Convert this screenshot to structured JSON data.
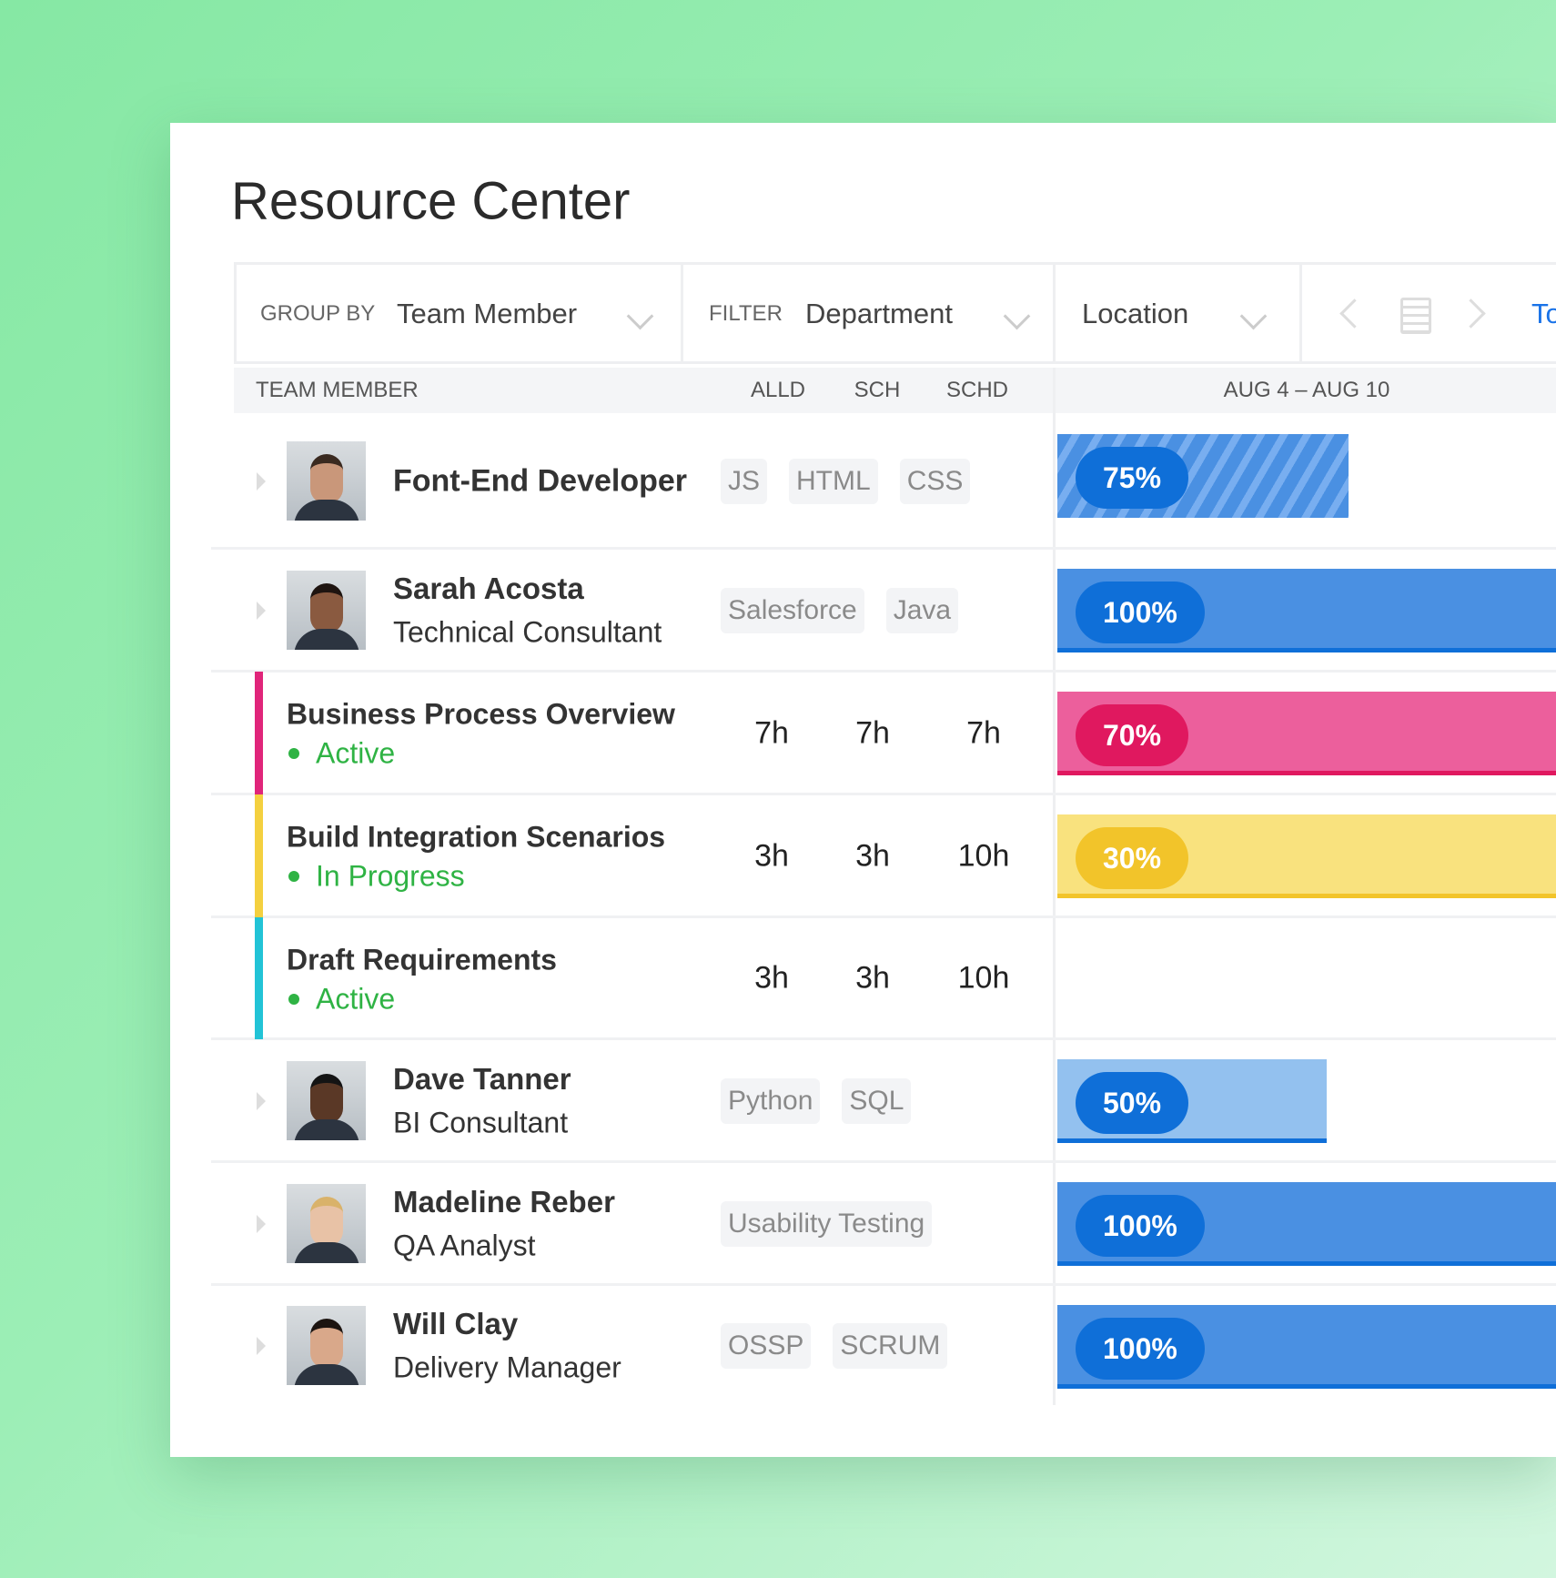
{
  "header": {
    "title": "Resource Center"
  },
  "toolbar": {
    "group_by_label": "GROUP BY",
    "group_by_value": "Team Member",
    "filter_label": "FILTER",
    "filter_value": "Department",
    "location": "Location",
    "today": "To"
  },
  "table": {
    "columns": [
      "TEAM MEMBER",
      "ALLD",
      "SCH",
      "SCHD"
    ],
    "period": "AUG 4 – AUG 10",
    "rows": [
      {
        "name": "Font-End Developer",
        "tags": [
          "JS",
          "HTML",
          "CSS"
        ],
        "allocation": "75%",
        "bar_color": "#4a90e2",
        "pill_color": "#0f6fd8",
        "hatched": true
      },
      {
        "name": "Sarah Acosta",
        "role": "Technical Consultant",
        "tags": [
          "Salesforce",
          "Java"
        ],
        "allocation": "100%",
        "bar_color": "#4a90e2",
        "pill_color": "#0f6fd8"
      },
      {
        "name": "Business Process Overview",
        "status": "Active",
        "stripe": "#e0257a",
        "hours": [
          "7h",
          "7h",
          "7h"
        ],
        "allocation": "70%",
        "bar_color": "#ec5f9c",
        "pill_color": "#e0185f"
      },
      {
        "name": "Build Integration Scenarios",
        "status": "In Progress",
        "stripe": "#f4d03f",
        "hours": [
          "3h",
          "3h",
          "10h"
        ],
        "allocation": "30%",
        "bar_color": "#f9e27e",
        "pill_color": "#f2c42a"
      },
      {
        "name": "Draft Requirements",
        "status": "Active",
        "stripe": "#22c3d6",
        "hours": [
          "3h",
          "3h",
          "10h"
        ]
      },
      {
        "name": "Dave Tanner",
        "role": "BI Consultant",
        "tags": [
          "Python",
          "SQL"
        ],
        "allocation": "50%",
        "bar_color": "#93c1ef",
        "pill_color": "#0f6fd8"
      },
      {
        "name": "Madeline Reber",
        "role": "QA Analyst",
        "tags": [
          "Usability Testing"
        ],
        "allocation": "100%",
        "bar_color": "#4a90e2",
        "pill_color": "#0f6fd8"
      },
      {
        "name": "Will Clay",
        "role": "Delivery Manager",
        "tags": [
          "OSSP",
          "SCRUM"
        ],
        "allocation": "100%",
        "bar_color": "#4a90e2",
        "pill_color": "#0f6fd8"
      }
    ]
  }
}
